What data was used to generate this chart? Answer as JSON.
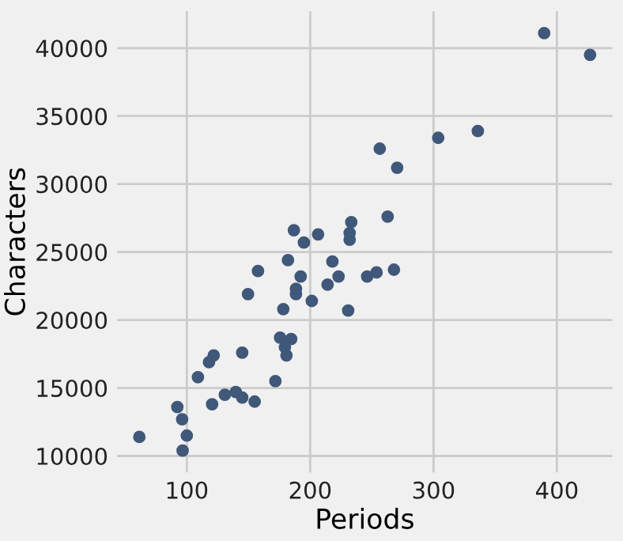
{
  "chart_data": {
    "type": "scatter",
    "xlabel": "Periods",
    "ylabel": "Characters",
    "series": [
      {
        "color": "#40587a",
        "x": [
          61.5,
          92.3,
          96.2,
          100,
          96.6,
          109,
          118,
          121.8,
          120.5,
          130.8,
          139.7,
          144.9,
          144.9,
          149.6,
          155,
          157.7,
          171.8,
          175.6,
          179.5,
          178.2,
          180.8,
          184.6,
          182,
          186.8,
          188.5,
          188.5,
          192.3,
          194.9,
          201.3,
          206.4,
          214.1,
          218,
          223,
          230.8,
          233.3,
          232,
          232,
          262.8,
          246.2,
          253.8,
          267.9,
          389.7,
          426.9,
          303.8,
          335.9,
          256.4,
          270.5
        ],
        "values": [
          11400,
          13600,
          12700,
          11500,
          10400,
          15800,
          16900,
          17400,
          13800,
          14500,
          14700,
          14300,
          17600,
          21900,
          14000,
          23600,
          15500,
          18700,
          18000,
          20800,
          17400,
          18600,
          24400,
          26600,
          22300,
          21900,
          23200,
          25700,
          21400,
          26300,
          22600,
          24300,
          23200,
          20700,
          27200,
          26400,
          25900,
          27600,
          23200,
          23500,
          23700,
          41100,
          39500,
          33400,
          33900,
          32600,
          31200
        ]
      }
    ],
    "marker": "circle",
    "xlim": [
      43.5,
      445
    ],
    "ylim": [
      8800,
      42700
    ],
    "xticks": [
      100,
      200,
      300,
      400
    ],
    "yticks": [
      10000,
      15000,
      20000,
      25000,
      30000,
      35000,
      40000
    ],
    "grid": true
  }
}
